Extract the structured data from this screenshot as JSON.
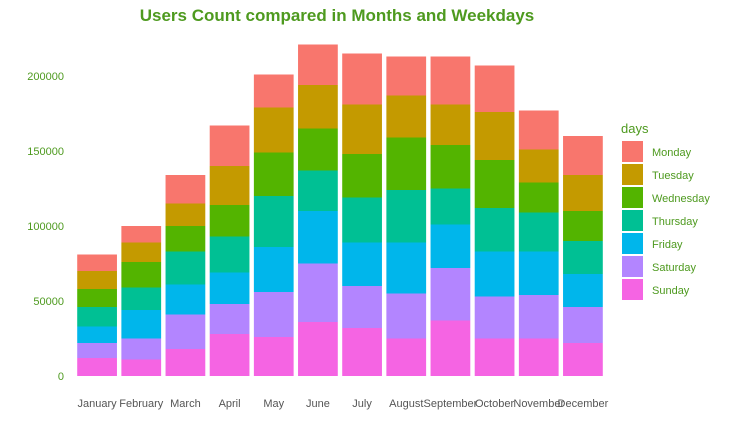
{
  "chart_data": {
    "type": "bar",
    "stacked": true,
    "title": "Users Count compared in Months and Weekdays",
    "xlabel": "",
    "ylabel": "",
    "ylim": [
      0,
      220000
    ],
    "yticks": [
      0,
      50000,
      100000,
      150000,
      200000
    ],
    "categories": [
      "January",
      "February",
      "March",
      "April",
      "May",
      "June",
      "July",
      "August",
      "September",
      "October",
      "November",
      "December"
    ],
    "legend_title": "days",
    "legend_position": "right",
    "series": [
      {
        "name": "Sunday",
        "color": "#F564E3",
        "values": [
          12000,
          11000,
          18000,
          28000,
          26000,
          36000,
          32000,
          25000,
          37000,
          25000,
          25000,
          22000
        ]
      },
      {
        "name": "Saturday",
        "color": "#B385FF",
        "values": [
          10000,
          14000,
          23000,
          20000,
          30000,
          39000,
          28000,
          30000,
          35000,
          28000,
          29000,
          24000
        ]
      },
      {
        "name": "Friday",
        "color": "#00B6EB",
        "values": [
          11000,
          19000,
          20000,
          21000,
          30000,
          35000,
          29000,
          34000,
          29000,
          30000,
          29000,
          22000
        ]
      },
      {
        "name": "Thursday",
        "color": "#00C094",
        "values": [
          13000,
          15000,
          22000,
          24000,
          34000,
          27000,
          30000,
          35000,
          24000,
          29000,
          26000,
          22000
        ]
      },
      {
        "name": "Wednesday",
        "color": "#53B400",
        "values": [
          12000,
          17000,
          17000,
          21000,
          29000,
          28000,
          29000,
          35000,
          29000,
          32000,
          20000,
          20000
        ]
      },
      {
        "name": "Tuesday",
        "color": "#C49A00",
        "values": [
          12000,
          13000,
          15000,
          26000,
          30000,
          29000,
          33000,
          28000,
          27000,
          32000,
          22000,
          24000
        ]
      },
      {
        "name": "Monday",
        "color": "#F8766D",
        "values": [
          11000,
          11000,
          19000,
          27000,
          22000,
          27000,
          34000,
          26000,
          32000,
          31000,
          26000,
          26000
        ]
      }
    ],
    "legend_order": [
      "Monday",
      "Tuesday",
      "Wednesday",
      "Thursday",
      "Friday",
      "Saturday",
      "Sunday"
    ],
    "text_color": "#4E9A1F",
    "tick_text_color": "#555555",
    "grid": false
  }
}
